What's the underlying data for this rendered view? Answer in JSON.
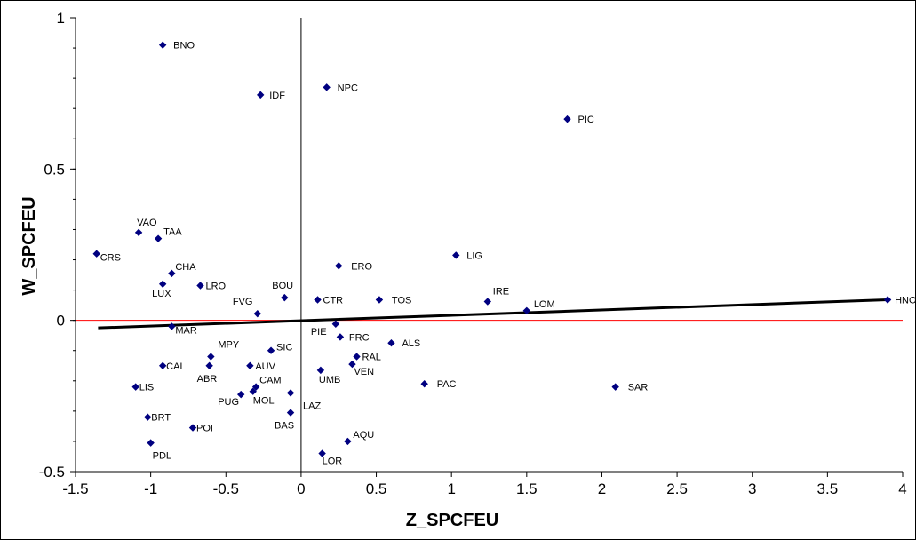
{
  "chart_data": {
    "type": "scatter",
    "xlabel": "Z_SPCFEU",
    "ylabel": "W_SPCFEU",
    "xlim": [
      -1.5,
      4
    ],
    "ylim": [
      -0.5,
      1
    ],
    "x_ticks": [
      "-1.5",
      "-1",
      "-0.5",
      "0",
      "0.5",
      "1",
      "1.5",
      "2",
      "2.5",
      "3",
      "3.5",
      "4"
    ],
    "y_ticks": [
      "-0.5",
      "0",
      "0.5",
      "1"
    ],
    "x_tick_values": [
      -1.5,
      -1,
      -0.5,
      0,
      0.5,
      1,
      1.5,
      2,
      2.5,
      3,
      3.5,
      4
    ],
    "y_tick_values": [
      -0.5,
      0,
      0.5,
      1
    ],
    "grid": false,
    "marker_color": "#000080",
    "trend_line_color": "#000000",
    "zero_line_color": "#ff0000",
    "trend_line": {
      "x": [
        -1.35,
        3.9
      ],
      "y": [
        -0.025,
        0.068
      ]
    },
    "points": [
      {
        "label": "BNO",
        "x": -0.92,
        "y": 0.91
      },
      {
        "label": "IDF",
        "x": -0.27,
        "y": 0.745
      },
      {
        "label": "NPC",
        "x": 0.17,
        "y": 0.77
      },
      {
        "label": "PIC",
        "x": 1.77,
        "y": 0.665
      },
      {
        "label": "VAO",
        "x": -1.08,
        "y": 0.29
      },
      {
        "label": "TAA",
        "x": -0.95,
        "y": 0.27
      },
      {
        "label": "CRS",
        "x": -1.36,
        "y": 0.22
      },
      {
        "label": "ERO",
        "x": 0.25,
        "y": 0.18
      },
      {
        "label": "LIG",
        "x": 1.03,
        "y": 0.215
      },
      {
        "label": "CHA",
        "x": -0.86,
        "y": 0.155
      },
      {
        "label": "LUX",
        "x": -0.92,
        "y": 0.12
      },
      {
        "label": "LRO",
        "x": -0.67,
        "y": 0.115
      },
      {
        "label": "BOU",
        "x": -0.11,
        "y": 0.075
      },
      {
        "label": "CTR",
        "x": 0.11,
        "y": 0.068
      },
      {
        "label": "TOS",
        "x": 0.52,
        "y": 0.068
      },
      {
        "label": "IRE",
        "x": 1.24,
        "y": 0.062
      },
      {
        "label": "LOM",
        "x": 1.5,
        "y": 0.032
      },
      {
        "label": "HNO",
        "x": 3.9,
        "y": 0.068
      },
      {
        "label": "FVG",
        "x": -0.29,
        "y": 0.022
      },
      {
        "label": "MAR",
        "x": -0.86,
        "y": -0.02
      },
      {
        "label": "PIE",
        "x": 0.23,
        "y": -0.012
      },
      {
        "label": "FRC",
        "x": 0.26,
        "y": -0.055
      },
      {
        "label": "ALS",
        "x": 0.6,
        "y": -0.075
      },
      {
        "label": "MPY",
        "x": -0.6,
        "y": -0.12
      },
      {
        "label": "SIC",
        "x": -0.2,
        "y": -0.1
      },
      {
        "label": "RAL",
        "x": 0.37,
        "y": -0.12
      },
      {
        "label": "CAL",
        "x": -0.92,
        "y": -0.15
      },
      {
        "label": "ABR",
        "x": -0.61,
        "y": -0.15
      },
      {
        "label": "AUV",
        "x": -0.34,
        "y": -0.15
      },
      {
        "label": "VEN",
        "x": 0.34,
        "y": -0.145
      },
      {
        "label": "UMB",
        "x": 0.13,
        "y": -0.165
      },
      {
        "label": "LIS",
        "x": -1.1,
        "y": -0.22
      },
      {
        "label": "CAM",
        "x": -0.3,
        "y": -0.22
      },
      {
        "label": "MOL",
        "x": -0.32,
        "y": -0.235
      },
      {
        "label": "PUG",
        "x": -0.4,
        "y": -0.245
      },
      {
        "label": "LAZ",
        "x": -0.07,
        "y": -0.24
      },
      {
        "label": "PAC",
        "x": 0.82,
        "y": -0.21
      },
      {
        "label": "SAR",
        "x": 2.09,
        "y": -0.22
      },
      {
        "label": "BAS",
        "x": -0.07,
        "y": -0.305
      },
      {
        "label": "BRT",
        "x": -1.02,
        "y": -0.32
      },
      {
        "label": "POI",
        "x": -0.72,
        "y": -0.355
      },
      {
        "label": "PDL",
        "x": -1.0,
        "y": -0.405
      },
      {
        "label": "AQU",
        "x": 0.31,
        "y": -0.4
      },
      {
        "label": "LOR",
        "x": 0.14,
        "y": -0.44
      }
    ]
  }
}
